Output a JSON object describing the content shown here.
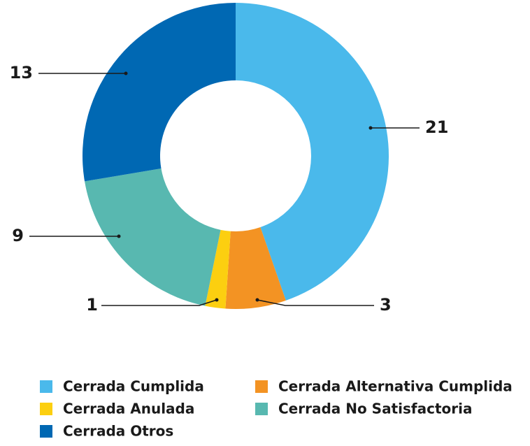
{
  "chart_data": {
    "type": "donut",
    "categories": [
      "Cerrada Cumplida",
      "Cerrada Alternativa Cumplida",
      "Cerrada Anulada",
      "Cerrada No Satisfactoria",
      "Cerrada Otros"
    ],
    "values": [
      21,
      3,
      1,
      9,
      13
    ],
    "colors": [
      "#4ab9eb",
      "#f39323",
      "#fccf10",
      "#58b8b0",
      "#0068b3"
    ]
  }
}
